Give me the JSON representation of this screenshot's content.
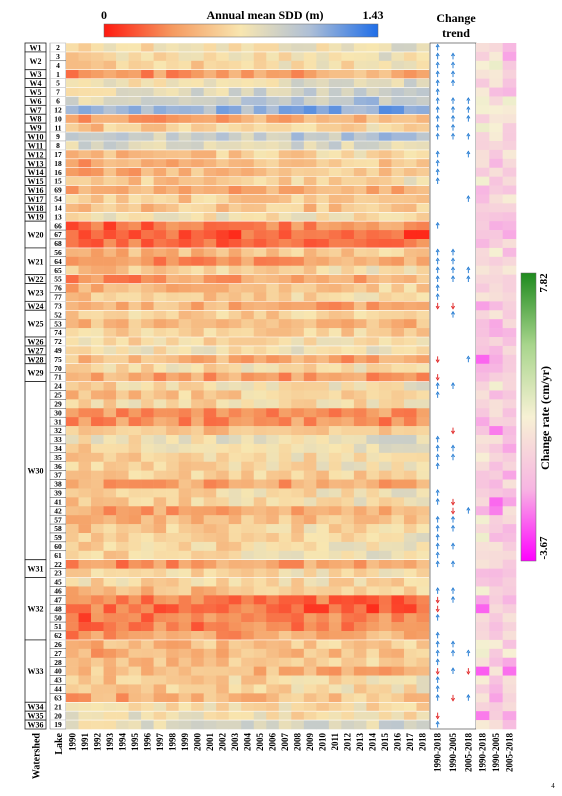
{
  "chart_data": {
    "type": "heatmap",
    "title": "Annual mean SDD (m)",
    "colorbar": {
      "min_label": "0",
      "max_label": "1.43",
      "min": 0,
      "max": 1.43,
      "colors": [
        "#ff1a10",
        "#f59a60",
        "#f8e6b0",
        "#aebfd6",
        "#1f6ee8"
      ]
    },
    "xlabel": "Lake",
    "watershed_label": "Watershed",
    "years": [
      "1990",
      "1991",
      "1992",
      "1993",
      "1994",
      "1995",
      "1996",
      "1997",
      "1998",
      "1999",
      "2000",
      "2001",
      "2002",
      "2003",
      "2004",
      "2005",
      "2006",
      "2007",
      "2008",
      "2009",
      "2010",
      "2011",
      "2012",
      "2013",
      "2014",
      "2015",
      "2016",
      "2017",
      "2018"
    ],
    "rows": [
      {
        "ws": "W1",
        "lake": "2",
        "base": 0.72,
        "trend": [
          "up",
          "",
          ""
        ]
      },
      {
        "ws": "W2",
        "lake": "3",
        "base": 0.7,
        "trend": [
          "up",
          "up",
          ""
        ]
      },
      {
        "ws": "",
        "lake": "4",
        "base": 0.66,
        "trend": [
          "up",
          "up",
          ""
        ]
      },
      {
        "ws": "W3",
        "lake": "1",
        "base": 0.4,
        "trend": [
          "up",
          "up",
          ""
        ]
      },
      {
        "ws": "W4",
        "lake": "5",
        "base": 0.78,
        "trend": [
          "up",
          "up",
          ""
        ]
      },
      {
        "ws": "W5",
        "lake": "7",
        "base": 0.86,
        "trend": [
          "up",
          "",
          ""
        ]
      },
      {
        "ws": "W6",
        "lake": "6",
        "base": 0.95,
        "trend": [
          "up",
          "up",
          "up"
        ]
      },
      {
        "ws": "W7",
        "lake": "12",
        "base": 1.12,
        "trend": [
          "up",
          "up",
          "up"
        ]
      },
      {
        "ws": "W8",
        "lake": "10",
        "base": 0.45,
        "trend": [
          "up",
          "up",
          "up"
        ]
      },
      {
        "ws": "W9",
        "lake": "11",
        "base": 0.62,
        "trend": [
          "up",
          "up",
          ""
        ]
      },
      {
        "ws": "W10",
        "lake": "9",
        "base": 0.95,
        "trend": [
          "up",
          "up",
          "up"
        ]
      },
      {
        "ws": "W11",
        "lake": "8",
        "base": 0.88,
        "trend": [
          "",
          "",
          ""
        ]
      },
      {
        "ws": "W12",
        "lake": "17",
        "base": 0.6,
        "trend": [
          "up",
          "",
          "up"
        ]
      },
      {
        "ws": "W13",
        "lake": "18",
        "base": 0.5,
        "trend": [
          "up",
          "",
          ""
        ]
      },
      {
        "ws": "W14",
        "lake": "16",
        "base": 0.52,
        "trend": [
          "up",
          "",
          ""
        ]
      },
      {
        "ws": "W15",
        "lake": "15",
        "base": 0.62,
        "trend": [
          "up",
          "",
          ""
        ]
      },
      {
        "ws": "W16",
        "lake": "69",
        "base": 0.45,
        "trend": [
          "",
          "",
          ""
        ]
      },
      {
        "ws": "W17",
        "lake": "54",
        "base": 0.58,
        "trend": [
          "",
          "",
          "up"
        ]
      },
      {
        "ws": "W18",
        "lake": "14",
        "base": 0.55,
        "trend": [
          "",
          "",
          ""
        ]
      },
      {
        "ws": "W19",
        "lake": "13",
        "base": 0.7,
        "trend": [
          "",
          "",
          ""
        ]
      },
      {
        "ws": "W20",
        "lake": "66",
        "base": 0.28,
        "trend": [
          "up",
          "",
          ""
        ]
      },
      {
        "ws": "",
        "lake": "67",
        "base": 0.18,
        "trend": [
          "",
          "",
          ""
        ]
      },
      {
        "ws": "",
        "lake": "68",
        "base": 0.25,
        "trend": [
          "",
          "",
          ""
        ]
      },
      {
        "ws": "W21",
        "lake": "56",
        "base": 0.55,
        "trend": [
          "up",
          "up",
          ""
        ]
      },
      {
        "ws": "",
        "lake": "64",
        "base": 0.4,
        "trend": [
          "up",
          "up",
          ""
        ]
      },
      {
        "ws": "",
        "lake": "65",
        "base": 0.62,
        "trend": [
          "up",
          "up",
          "up"
        ]
      },
      {
        "ws": "W22",
        "lake": "55",
        "base": 0.4,
        "trend": [
          "up",
          "up",
          "up"
        ]
      },
      {
        "ws": "W23",
        "lake": "76",
        "base": 0.55,
        "trend": [
          "up",
          "",
          ""
        ]
      },
      {
        "ws": "",
        "lake": "77",
        "base": 0.6,
        "trend": [
          "up",
          "",
          ""
        ]
      },
      {
        "ws": "W24",
        "lake": "73",
        "base": 0.45,
        "trend": [
          "down",
          "down",
          ""
        ]
      },
      {
        "ws": "W25",
        "lake": "52",
        "base": 0.62,
        "trend": [
          "",
          "up",
          ""
        ]
      },
      {
        "ws": "",
        "lake": "53",
        "base": 0.5,
        "trend": [
          "",
          "",
          ""
        ]
      },
      {
        "ws": "",
        "lake": "74",
        "base": 0.62,
        "trend": [
          "",
          "",
          ""
        ]
      },
      {
        "ws": "W26",
        "lake": "72",
        "base": 0.66,
        "trend": [
          "",
          "",
          ""
        ]
      },
      {
        "ws": "W27",
        "lake": "49",
        "base": 0.72,
        "trend": [
          "",
          "",
          ""
        ]
      },
      {
        "ws": "W28",
        "lake": "75",
        "base": 0.45,
        "trend": [
          "down",
          "",
          "up"
        ]
      },
      {
        "ws": "W29",
        "lake": "70",
        "base": 0.68,
        "trend": [
          "",
          "",
          ""
        ]
      },
      {
        "ws": "",
        "lake": "71",
        "base": 0.4,
        "trend": [
          "down",
          "",
          ""
        ]
      },
      {
        "ws": "W30",
        "lake": "24",
        "base": 0.7,
        "trend": [
          "up",
          "up",
          ""
        ]
      },
      {
        "ws": "",
        "lake": "25",
        "base": 0.62,
        "trend": [
          "up",
          "",
          ""
        ]
      },
      {
        "ws": "",
        "lake": "29",
        "base": 0.66,
        "trend": [
          "",
          "",
          ""
        ]
      },
      {
        "ws": "",
        "lake": "30",
        "base": 0.35,
        "trend": [
          "",
          "",
          ""
        ]
      },
      {
        "ws": "",
        "lake": "31",
        "base": 0.35,
        "trend": [
          "",
          "",
          ""
        ]
      },
      {
        "ws": "",
        "lake": "32",
        "base": 0.55,
        "trend": [
          "",
          "down",
          ""
        ]
      },
      {
        "ws": "",
        "lake": "33",
        "base": 0.78,
        "trend": [
          "up",
          "",
          ""
        ]
      },
      {
        "ws": "",
        "lake": "34",
        "base": 0.7,
        "trend": [
          "up",
          "up",
          ""
        ]
      },
      {
        "ws": "",
        "lake": "35",
        "base": 0.66,
        "trend": [
          "up",
          "up",
          ""
        ]
      },
      {
        "ws": "",
        "lake": "36",
        "base": 0.66,
        "trend": [
          "up",
          "",
          ""
        ]
      },
      {
        "ws": "",
        "lake": "37",
        "base": 0.62,
        "trend": [
          "",
          "",
          ""
        ]
      },
      {
        "ws": "",
        "lake": "38",
        "base": 0.42,
        "trend": [
          "",
          "",
          ""
        ]
      },
      {
        "ws": "",
        "lake": "39",
        "base": 0.66,
        "trend": [
          "up",
          "",
          ""
        ]
      },
      {
        "ws": "",
        "lake": "41",
        "base": 0.66,
        "trend": [
          "up",
          "down",
          ""
        ]
      },
      {
        "ws": "",
        "lake": "42",
        "base": 0.42,
        "trend": [
          "",
          "down",
          "up"
        ]
      },
      {
        "ws": "",
        "lake": "57",
        "base": 0.52,
        "trend": [
          "up",
          "up",
          ""
        ]
      },
      {
        "ws": "",
        "lake": "58",
        "base": 0.62,
        "trend": [
          "up",
          "up",
          ""
        ]
      },
      {
        "ws": "",
        "lake": "59",
        "base": 0.66,
        "trend": [
          "up",
          "",
          ""
        ]
      },
      {
        "ws": "",
        "lake": "60",
        "base": 0.66,
        "trend": [
          "up",
          "up",
          ""
        ]
      },
      {
        "ws": "",
        "lake": "61",
        "base": 0.7,
        "trend": [
          "up",
          "",
          ""
        ]
      },
      {
        "ws": "W31",
        "lake": "22",
        "base": 0.4,
        "trend": [
          "up",
          "up",
          ""
        ]
      },
      {
        "ws": "",
        "lake": "23",
        "base": 0.66,
        "trend": [
          "",
          "",
          ""
        ]
      },
      {
        "ws": "W32",
        "lake": "45",
        "base": 0.66,
        "trend": [
          "",
          "",
          ""
        ]
      },
      {
        "ws": "",
        "lake": "46",
        "base": 0.55,
        "trend": [
          "up",
          "up",
          ""
        ]
      },
      {
        "ws": "",
        "lake": "47",
        "base": 0.28,
        "trend": [
          "down",
          "up",
          ""
        ]
      },
      {
        "ws": "",
        "lake": "48",
        "base": 0.22,
        "trend": [
          "down",
          "",
          ""
        ]
      },
      {
        "ws": "",
        "lake": "50",
        "base": 0.3,
        "trend": [
          "up",
          "",
          ""
        ]
      },
      {
        "ws": "",
        "lake": "51",
        "base": 0.3,
        "trend": [
          "",
          "",
          ""
        ]
      },
      {
        "ws": "",
        "lake": "62",
        "base": 0.42,
        "trend": [
          "up",
          "",
          ""
        ]
      },
      {
        "ws": "W33",
        "lake": "26",
        "base": 0.55,
        "trend": [
          "up",
          "up",
          ""
        ]
      },
      {
        "ws": "",
        "lake": "27",
        "base": 0.5,
        "trend": [
          "up",
          "up",
          "up"
        ]
      },
      {
        "ws": "",
        "lake": "28",
        "base": 0.55,
        "trend": [
          "up",
          "",
          ""
        ]
      },
      {
        "ws": "",
        "lake": "40",
        "base": 0.5,
        "trend": [
          "down",
          "up",
          "down"
        ]
      },
      {
        "ws": "",
        "lake": "43",
        "base": 0.62,
        "trend": [
          "up",
          "",
          ""
        ]
      },
      {
        "ws": "",
        "lake": "44",
        "base": 0.62,
        "trend": [
          "up",
          "",
          ""
        ]
      },
      {
        "ws": "",
        "lake": "63",
        "base": 0.5,
        "trend": [
          "up",
          "down",
          "up"
        ]
      },
      {
        "ws": "W34",
        "lake": "21",
        "base": 0.66,
        "trend": [
          "",
          "",
          ""
        ]
      },
      {
        "ws": "W35",
        "lake": "20",
        "base": 0.7,
        "trend": [
          "down",
          "",
          ""
        ]
      },
      {
        "ws": "W36",
        "lake": "19",
        "base": 0.82,
        "trend": [
          "up",
          "",
          ""
        ]
      }
    ],
    "trend": {
      "title_lines": [
        "Change",
        "trend"
      ],
      "periods": [
        "1990-2018",
        "1990-2005",
        "2005-2018"
      ]
    },
    "change_rate": {
      "periods": [
        "1990-2018",
        "1990-2005",
        "2005-2018"
      ],
      "colorbar_label": "Change rate (cm/yr)",
      "max_label": "7.82",
      "min_label": "-3.67",
      "max": 7.82,
      "min": -3.67,
      "colors": [
        "#ff00ff",
        "#f7b5e2",
        "#f7f1d4",
        "#a8d58c",
        "#1e8a1e"
      ]
    },
    "page_mark": "4"
  }
}
